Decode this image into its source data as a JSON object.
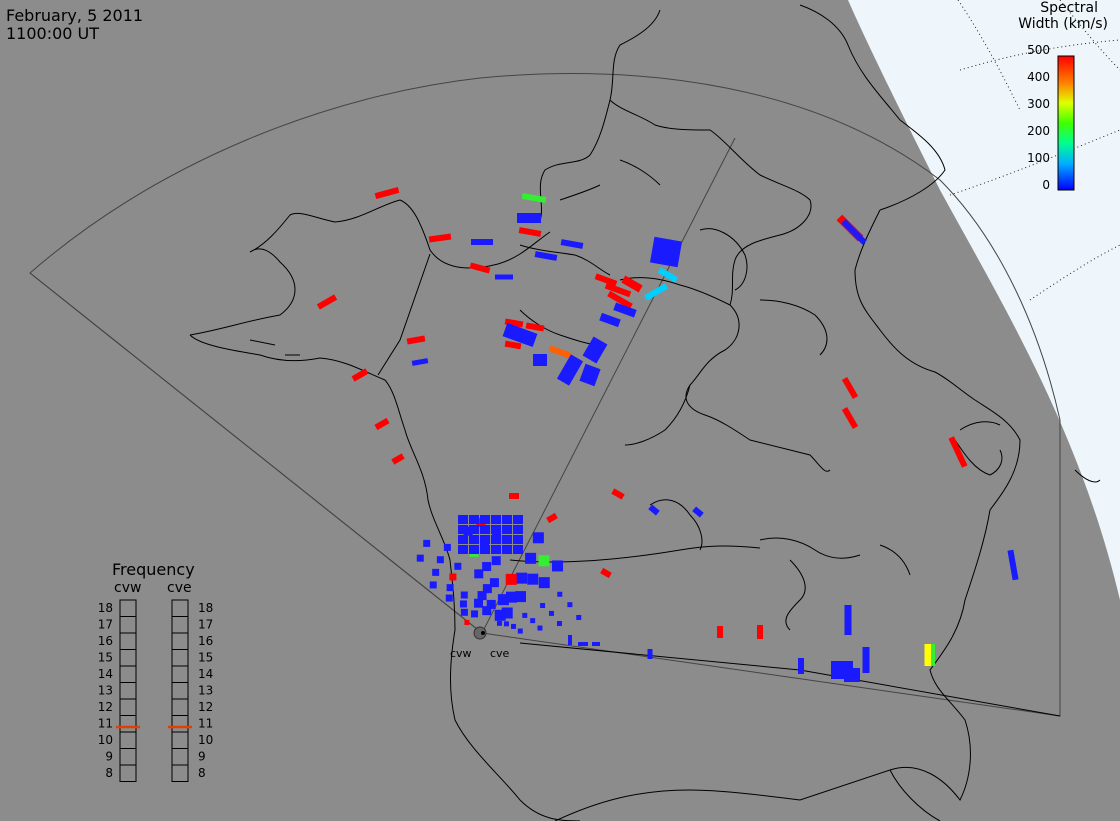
{
  "title": {
    "date": "February, 5 2011",
    "time": "1100:00 UT"
  },
  "colorbar": {
    "title_line1": "Spectral",
    "title_line2": "Width (km/s)",
    "ticks": [
      "500",
      "400",
      "300",
      "200",
      "100",
      "0"
    ],
    "colors": [
      "#0000ff",
      "#00c0ff",
      "#00ff80",
      "#80ff00",
      "#ffff00",
      "#ff8000",
      "#ff0000"
    ]
  },
  "frequency_panel": {
    "title": "Frequency",
    "radars": [
      "cvw",
      "cve"
    ],
    "levels": [
      "18",
      "17",
      "16",
      "15",
      "14",
      "13",
      "12",
      "11",
      "10",
      "9",
      "8"
    ],
    "selected": {
      "cvw": 10.8,
      "cve": 10.8
    },
    "marker_color": "#e04000"
  },
  "radars": [
    {
      "name": "cvw"
    },
    {
      "name": "cve"
    }
  ],
  "colors": {
    "background": "#8c8c8c",
    "daylight_region": "#eef6fb",
    "coastline": "#000000",
    "field_of_view": "#444444"
  }
}
